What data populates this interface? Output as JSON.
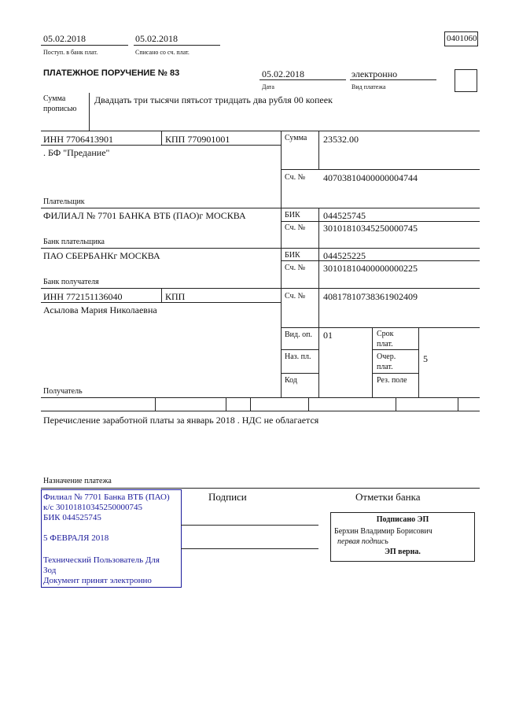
{
  "top": {
    "received_date": "05.02.2018",
    "received_label": "Поступ. в банк плат.",
    "debited_date": "05.02.2018",
    "debited_label": "Списано со сч. плат.",
    "form_code": "0401060"
  },
  "header": {
    "title": "ПЛАТЕЖНОЕ ПОРУЧЕНИЕ № 83",
    "date": "05.02.2018",
    "date_label": "Дата",
    "payment_type": "электронно",
    "payment_type_label": "Вид платежа"
  },
  "amount_words": {
    "label_1": "Сумма",
    "label_2": "прописью",
    "value": "Двадцать три тысячи пятьсот тридцать два рубля 00 копеек"
  },
  "payer": {
    "inn": "ИНН 7706413901",
    "kpp": "КПП 770901001",
    "name": ". БФ \"Предание\"",
    "label": "Плательщик",
    "sum_label": "Сумма",
    "sum": "23532.00",
    "account_label": "Сч. №",
    "account": "40703810400000004744"
  },
  "payer_bank": {
    "name": "ФИЛИАЛ № 7701 БАНКА ВТБ (ПАО)г МОСКВА",
    "label": "Банк плательщика",
    "bik_label": "БИК",
    "bik": "044525745",
    "account_label": "Сч. №",
    "account": "30101810345250000745"
  },
  "payee_bank": {
    "name": "ПАО СБЕРБАНКг МОСКВА",
    "label": "Банк получателя",
    "bik_label": "БИК",
    "bik": "044525225",
    "account_label": "Сч. №",
    "account": "30101810400000000225"
  },
  "payee": {
    "inn": "ИНН 772151136040",
    "kpp": "КПП",
    "name": "Асылова Мария Николаевна",
    "label": "Получатель",
    "account_label": "Сч. №",
    "account": "40817810738361902409"
  },
  "codes": {
    "op_type_label": "Вид. оп.",
    "op_type": "01",
    "purpose_label": "Наз. пл.",
    "code_label": "Код",
    "term_label_1": "Срок",
    "term_label_2": "плат.",
    "order_label_1": "Очер.",
    "order_label_2": "плат.",
    "order": "5",
    "reserve_label": "Рез. поле"
  },
  "purpose": {
    "text": "Перечисление заработной платы за январь 2018 . НДС не облагается",
    "label": "Назначение платежа"
  },
  "bank_stamp": {
    "lines": [
      "Филиал № 7701 Банка ВТБ (ПАО)",
      "к/с 30101810345250000745",
      "БИК 044525745",
      "5 ФЕВРАЛЯ 2018",
      "Технический Пользователь Для",
      "Зод",
      "Документ принят электронно"
    ],
    "color": "#1a1a9a"
  },
  "signatures": {
    "label": "Подписи",
    "bank_marks_label": "Отметки банка"
  },
  "esign": {
    "title": "Подписано ЭП",
    "signer": "Берхин Владимир Борисович",
    "role": "первая подпись",
    "status": "ЭП верна."
  }
}
